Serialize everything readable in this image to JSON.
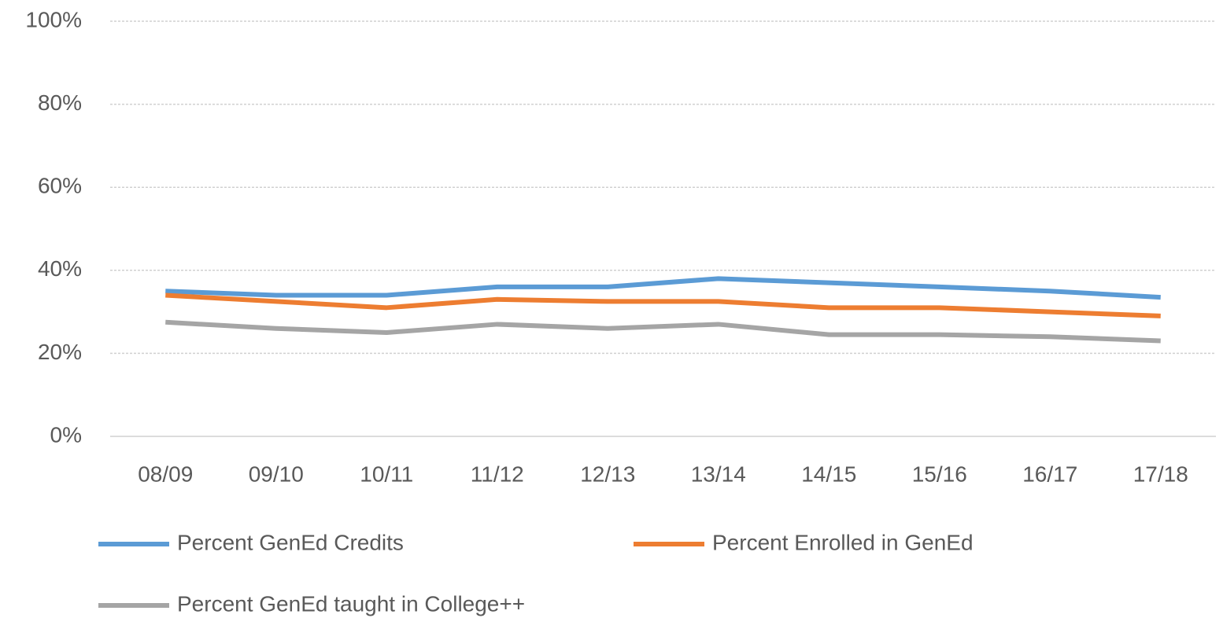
{
  "chart_data": {
    "type": "line",
    "categories": [
      "08/09",
      "09/10",
      "10/11",
      "11/12",
      "12/13",
      "13/14",
      "14/15",
      "15/16",
      "16/17",
      "17/18"
    ],
    "series": [
      {
        "name": "Percent GenEd Credits",
        "color": "#5b9bd5",
        "values": [
          35,
          34,
          34,
          36,
          36,
          38,
          37,
          36,
          35,
          33.5
        ]
      },
      {
        "name": "Percent Enrolled in GenEd",
        "color": "#ed7d31",
        "values": [
          34,
          32.5,
          31,
          33,
          32.5,
          32.5,
          31,
          31,
          30,
          29
        ]
      },
      {
        "name": "Percent GenEd taught in College++",
        "color": "#a5a5a5",
        "values": [
          27.5,
          26,
          25,
          27,
          26,
          27,
          24.5,
          24.5,
          24,
          23
        ]
      }
    ],
    "ylim": [
      0,
      100
    ],
    "yticks": [
      {
        "value": 0,
        "label": "0%"
      },
      {
        "value": 20,
        "label": "20%"
      },
      {
        "value": 40,
        "label": "40%"
      },
      {
        "value": 60,
        "label": "60%"
      },
      {
        "value": 80,
        "label": "80%"
      },
      {
        "value": 100,
        "label": "100%"
      }
    ],
    "grid": true,
    "legend": "bottom"
  }
}
